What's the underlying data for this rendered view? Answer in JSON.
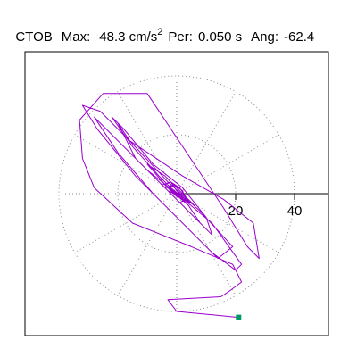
{
  "header": {
    "station": "CTOB",
    "max_label": "Max:",
    "max_value": "48.3 cm/s",
    "max_exp": "2",
    "per_label": "Per:",
    "per_value": "0.050 s",
    "ang_label": "Ang:",
    "ang_value": "-62.4"
  },
  "chart_data": {
    "type": "scatter",
    "title": "CTOB   Max:  48.3 cm/s2  Per:  0.050 s   Ang: -62.4",
    "description": "Horizontal particle-motion (hodogram) plot with polar grid",
    "xlabel": "",
    "ylabel": "",
    "xlim": [
      -48,
      48
    ],
    "ylim": [
      -48,
      48
    ],
    "grid": "polar",
    "grid_rings": [
      20,
      40
    ],
    "grid_spokes_deg": [
      0,
      30,
      60,
      90,
      120,
      150,
      180,
      210,
      240,
      270,
      300,
      330
    ],
    "tick_labels": [
      "20",
      "40"
    ],
    "axis_ticks": [
      20,
      40
    ],
    "end_marker": {
      "x": 21,
      "y": -42,
      "color": "#009966"
    },
    "line_color": "#9900cc",
    "series": [
      {
        "points": [
          [
            21,
            -42
          ],
          [
            0,
            -40
          ],
          [
            -3,
            -36
          ],
          [
            15,
            -35
          ],
          [
            18,
            -33
          ],
          [
            22,
            -30
          ],
          [
            19,
            -24
          ],
          [
            5,
            -18
          ],
          [
            -15,
            -10
          ],
          [
            -28,
            2
          ],
          [
            -32,
            12
          ],
          [
            -33,
            25
          ],
          [
            -25,
            34
          ],
          [
            -10,
            34
          ],
          [
            -2,
            22
          ],
          [
            6,
            10
          ],
          [
            16,
            -5
          ],
          [
            24,
            -18
          ],
          [
            28,
            -22
          ],
          [
            26,
            -10
          ],
          [
            16,
            -2
          ],
          [
            2,
            6
          ],
          [
            -16,
            18
          ],
          [
            -26,
            28
          ],
          [
            -32,
            30
          ],
          [
            -27,
            22
          ],
          [
            -14,
            6
          ],
          [
            2,
            -10
          ],
          [
            12,
            -20
          ],
          [
            20,
            -26
          ],
          [
            22,
            -24
          ],
          [
            12,
            -10
          ],
          [
            0,
            0
          ],
          [
            -10,
            8
          ],
          [
            -24,
            22
          ],
          [
            -28,
            26
          ],
          [
            -20,
            14
          ],
          [
            -8,
            0
          ],
          [
            6,
            -14
          ],
          [
            14,
            -22
          ],
          [
            19,
            -18
          ],
          [
            8,
            -6
          ],
          [
            -3,
            4
          ],
          [
            -16,
            18
          ],
          [
            -20,
            24
          ],
          [
            -14,
            12
          ],
          [
            -4,
            2
          ],
          [
            6,
            -8
          ],
          [
            12,
            -14
          ],
          [
            10,
            -8
          ],
          [
            2,
            2
          ],
          [
            -8,
            10
          ],
          [
            -18,
            22
          ],
          [
            -22,
            26
          ],
          [
            -15,
            16
          ],
          [
            -6,
            6
          ],
          [
            4,
            -4
          ],
          [
            8,
            -10
          ],
          [
            4,
            -4
          ],
          [
            -3,
            2
          ],
          [
            -10,
            10
          ],
          [
            -4,
            6
          ],
          [
            2,
            0
          ],
          [
            6,
            -4
          ],
          [
            3,
            -2
          ],
          [
            -2,
            2
          ],
          [
            -6,
            6
          ],
          [
            -3,
            3
          ],
          [
            2,
            -2
          ],
          [
            4,
            -3
          ],
          [
            1,
            -1
          ],
          [
            -3,
            1
          ],
          [
            -5,
            3
          ],
          [
            -2,
            4
          ],
          [
            1,
            2
          ],
          [
            3,
            -1
          ],
          [
            5,
            -3
          ],
          [
            2,
            -2
          ],
          [
            -1,
            0
          ],
          [
            -4,
            3
          ],
          [
            -2,
            4
          ],
          [
            0,
            1
          ],
          [
            3,
            -2
          ],
          [
            1,
            -3
          ],
          [
            -2,
            0
          ],
          [
            -4,
            2
          ],
          [
            -1,
            3
          ],
          [
            2,
            0
          ],
          [
            4,
            -2
          ],
          [
            1,
            -1
          ],
          [
            -3,
            2
          ],
          [
            -1,
            3
          ],
          [
            2,
            1
          ],
          [
            3,
            -2
          ],
          [
            0,
            -1
          ],
          [
            -2,
            1
          ]
        ]
      }
    ]
  }
}
